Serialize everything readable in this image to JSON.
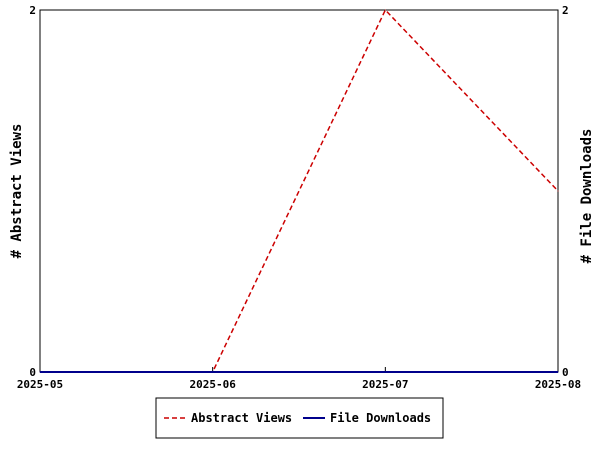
{
  "chart_data": {
    "type": "line",
    "title": "",
    "x": [
      "2025-05",
      "2025-06",
      "2025-07",
      "2025-08"
    ],
    "xlabel": "",
    "ylabel_left": "# Abstract Views",
    "ylabel_right": "# File Downloads",
    "ylim_left": [
      0,
      2
    ],
    "ylim_right": [
      0,
      2
    ],
    "y_ticks_left": [
      "0",
      "2"
    ],
    "y_ticks_right": [
      "0",
      "2"
    ],
    "grid": false,
    "legend_position": "bottom-center",
    "series": [
      {
        "name": "Abstract Views",
        "values": [
          0,
          0,
          2,
          1
        ],
        "axis": "left",
        "color": "#cc0000",
        "style": "dashed"
      },
      {
        "name": "File Downloads",
        "values": [
          0,
          0,
          0,
          0
        ],
        "axis": "right",
        "color": "#00008b",
        "style": "solid"
      }
    ]
  }
}
